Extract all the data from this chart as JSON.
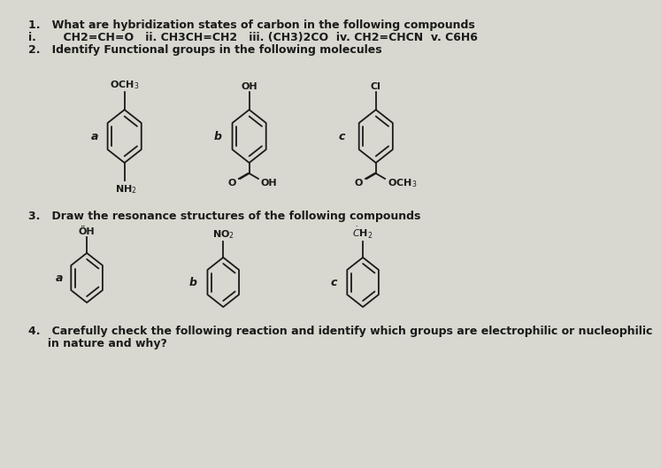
{
  "bg_color": "#d8d8d0",
  "text_color": "#1a1a1a",
  "title_fontsize": 9,
  "label_fontsize": 8,
  "fig_width": 7.0,
  "fig_height": 5.1,
  "q1_line1": "1.   What are hybridization states of carbon in the following compounds",
  "q1_line2": "i.       CH2=CH=O   ii. CH3CH=CH2   iii. (CH3)2CO  iv. CH2=CHCN  v. C6H6",
  "q2_line1": "2.   Identify Functional groups in the following molecules",
  "q3_line1": "3.   Draw the resonance structures of the following compounds",
  "q4_line1": "4.   Carefully check the following reaction and identify which groups are electrophilic or nucleophilic",
  "q4_line2": "     in nature and why?"
}
